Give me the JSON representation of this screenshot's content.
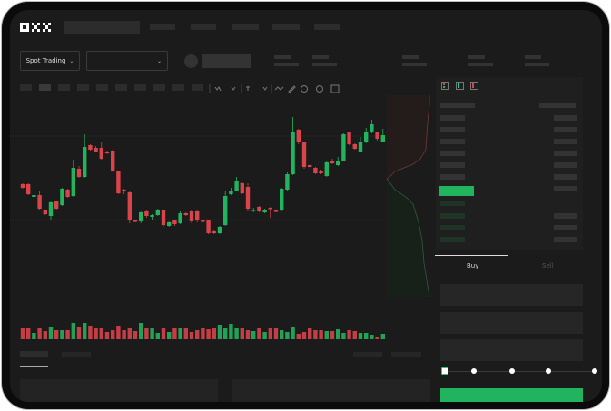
{
  "brand": {
    "logo": "OKX"
  },
  "market_selector": {
    "label": "Spot Trading",
    "chevron": "chevron-down-icon"
  },
  "pair_selector": {
    "chevron": "chevron-down-icon"
  },
  "order_form": {
    "tabs": [
      {
        "label": "Buy",
        "active": true
      },
      {
        "label": "Sell",
        "active": false
      }
    ],
    "slider_percent": 0,
    "slider_stops": 5
  },
  "colors": {
    "up": "#22b35e",
    "down": "#d9434a",
    "background": "#1b1b1b",
    "submit": "#22b35e"
  },
  "chart_data": {
    "type": "candlestick",
    "candles_ohlc": [
      [
        97,
        93,
        98,
        92
      ],
      [
        97,
        86,
        98,
        85
      ],
      [
        83,
        85,
        86,
        83
      ],
      [
        85,
        70,
        90,
        68
      ],
      [
        68,
        64,
        69,
        63
      ],
      [
        62,
        77,
        78,
        57
      ],
      [
        78,
        70,
        79,
        69
      ],
      [
        74,
        92,
        93,
        73
      ],
      [
        91,
        83,
        92,
        82
      ],
      [
        84,
        115,
        124,
        83
      ],
      [
        114,
        105,
        117,
        104
      ],
      [
        105,
        138,
        152,
        104
      ],
      [
        140,
        135,
        141,
        134
      ],
      [
        137,
        133,
        139,
        132
      ],
      [
        137,
        125,
        143,
        124
      ],
      [
        133,
        131,
        134,
        130
      ],
      [
        134,
        111,
        136,
        110
      ],
      [
        111,
        87,
        112,
        86
      ],
      [
        91,
        89,
        92,
        86
      ],
      [
        88,
        57,
        89,
        54
      ],
      [
        57,
        56,
        58,
        55
      ],
      [
        56,
        66,
        67,
        54
      ],
      [
        67,
        62,
        69,
        60
      ],
      [
        61,
        63,
        64,
        57
      ],
      [
        63,
        68,
        70,
        62
      ],
      [
        68,
        52,
        69,
        50
      ],
      [
        51,
        55,
        56,
        50
      ],
      [
        57,
        53,
        58,
        51
      ],
      [
        54,
        65,
        67,
        53
      ],
      [
        65,
        63,
        66,
        62
      ],
      [
        67,
        56,
        68,
        54
      ],
      [
        67,
        57,
        68,
        55
      ],
      [
        57,
        56,
        58,
        55
      ],
      [
        57,
        43,
        58,
        42
      ],
      [
        45,
        43,
        46,
        42
      ],
      [
        43,
        50,
        51,
        42
      ],
      [
        52,
        84,
        90,
        51
      ],
      [
        86,
        90,
        93,
        85
      ],
      [
        90,
        100,
        105,
        89
      ],
      [
        98,
        87,
        99,
        86
      ],
      [
        94,
        70,
        98,
        67
      ],
      [
        68,
        69,
        71,
        66
      ],
      [
        72,
        67,
        73,
        66
      ],
      [
        66,
        69,
        70,
        65
      ],
      [
        71,
        70,
        72,
        60
      ],
      [
        68,
        67,
        69,
        66
      ],
      [
        68,
        92,
        93,
        67
      ],
      [
        91,
        108,
        110,
        90
      ],
      [
        108,
        155,
        171,
        107
      ],
      [
        157,
        143,
        158,
        141
      ],
      [
        143,
        116,
        144,
        114
      ],
      [
        118,
        116,
        119,
        115
      ],
      [
        115,
        109,
        116,
        108
      ],
      [
        111,
        109,
        113,
        108
      ],
      [
        106,
        121,
        123,
        105
      ],
      [
        122,
        120,
        125,
        119
      ],
      [
        118,
        123,
        127,
        117
      ],
      [
        123,
        152,
        153,
        122
      ],
      [
        154,
        141,
        155,
        140
      ],
      [
        141,
        136,
        142,
        135
      ],
      [
        133,
        143,
        149,
        132
      ],
      [
        143,
        154,
        159,
        142
      ],
      [
        154,
        163,
        168,
        153
      ],
      [
        154,
        147,
        155,
        145
      ],
      [
        144,
        151,
        158,
        143
      ]
    ],
    "volumes": [
      12,
      12,
      7,
      12,
      9,
      14,
      10,
      10,
      10,
      18,
      14,
      18,
      15,
      12,
      12,
      8,
      10,
      15,
      10,
      12,
      9,
      18,
      12,
      12,
      7,
      12,
      8,
      12,
      12,
      13,
      8,
      10,
      13,
      11,
      13,
      16,
      12,
      17,
      13,
      13,
      10,
      9,
      12,
      8,
      12,
      13,
      10,
      8,
      14,
      6,
      8,
      12,
      10,
      10,
      9,
      9,
      11,
      7,
      10,
      9,
      7,
      7,
      5,
      3,
      6
    ]
  }
}
